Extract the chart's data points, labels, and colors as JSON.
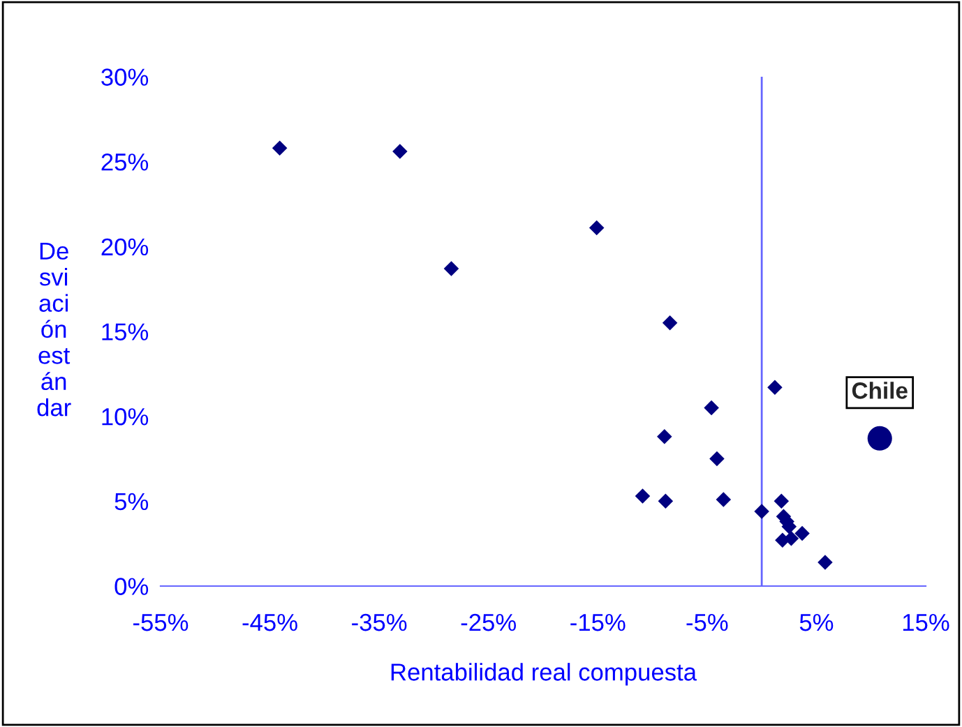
{
  "chart_data": {
    "type": "scatter",
    "xlabel": "Rentabilidad real compuesta",
    "ylabel": "De\nsvi\naci\nón\nest\nán\ndar",
    "series": [
      {
        "color": "#000080",
        "marker": "diamond",
        "x": [
          -44.1,
          -33.1,
          -28.4,
          -15.1,
          -8.4,
          1.2,
          -4.6,
          -8.9,
          -4.1,
          -10.9,
          -8.8,
          -3.5,
          0.0,
          1.8,
          2.0,
          2.3,
          2.5,
          3.7,
          1.9,
          2.7,
          5.8
        ],
        "values": [
          25.8,
          25.6,
          18.7,
          21.1,
          15.5,
          11.7,
          10.5,
          8.8,
          7.5,
          5.3,
          5.0,
          5.1,
          4.4,
          5.0,
          4.1,
          3.8,
          3.5,
          3.1,
          2.7,
          2.8,
          1.4
        ]
      },
      {
        "name": "Chile",
        "color": "#000080",
        "marker": "circle",
        "x": [
          10.8
        ],
        "values": [
          8.7
        ]
      }
    ],
    "xlim": [
      -55,
      15
    ],
    "xticks": [
      {
        "value": -55,
        "label": "-55%"
      },
      {
        "value": -45,
        "label": "-45%"
      },
      {
        "value": -35,
        "label": "-35%"
      },
      {
        "value": -25,
        "label": "-25%"
      },
      {
        "value": -15,
        "label": "-15%"
      },
      {
        "value": -5,
        "label": "-5%"
      },
      {
        "value": 5,
        "label": "5%"
      },
      {
        "value": 15,
        "label": "15%"
      }
    ],
    "ylim": [
      0,
      30
    ],
    "yticks": [
      {
        "value": 0,
        "label": "0%"
      },
      {
        "value": 5,
        "label": "5%"
      },
      {
        "value": 10,
        "label": "10%"
      },
      {
        "value": 15,
        "label": "15%"
      },
      {
        "value": 20,
        "label": "20%"
      },
      {
        "value": 25,
        "label": "25%"
      },
      {
        "value": 30,
        "label": "30%"
      }
    ],
    "ref_lines": [
      {
        "axis": "x",
        "value": 0,
        "color": "#6666ff"
      }
    ],
    "grid": false,
    "legend": false
  }
}
